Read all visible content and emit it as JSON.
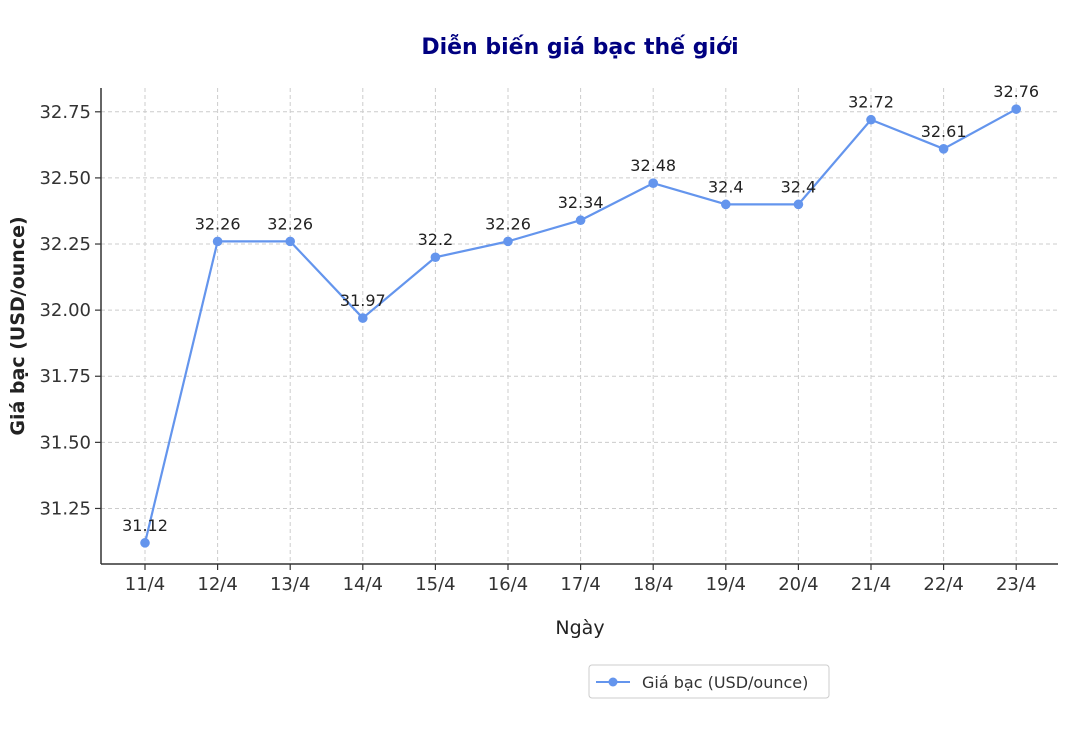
{
  "chart_data": {
    "type": "line",
    "title": "Diễn biến giá bạc thế giới",
    "xlabel": "Ngày",
    "ylabel": "Giá bạc (USD/ounce)",
    "categories": [
      "11/4",
      "12/4",
      "13/4",
      "14/4",
      "15/4",
      "16/4",
      "17/4",
      "18/4",
      "19/4",
      "20/4",
      "21/4",
      "22/4",
      "23/4"
    ],
    "series": [
      {
        "name": "Giá bạc (USD/ounce)",
        "color": "#6495ED",
        "values": [
          31.12,
          32.26,
          32.26,
          31.97,
          32.2,
          32.26,
          32.34,
          32.48,
          32.4,
          32.4,
          32.72,
          32.61,
          32.76
        ],
        "value_labels": [
          "31.12",
          "32.26",
          "32.26",
          "31.97",
          "32.2",
          "32.26",
          "32.34",
          "32.48",
          "32.4",
          "32.4",
          "32.72",
          "32.61",
          "32.76"
        ]
      }
    ],
    "yticks": [
      "31.25",
      "31.50",
      "31.75",
      "32.00",
      "32.25",
      "32.50",
      "32.75"
    ],
    "ylim": [
      31.04,
      32.84
    ],
    "grid": true,
    "legend_position": "bottom-right"
  }
}
